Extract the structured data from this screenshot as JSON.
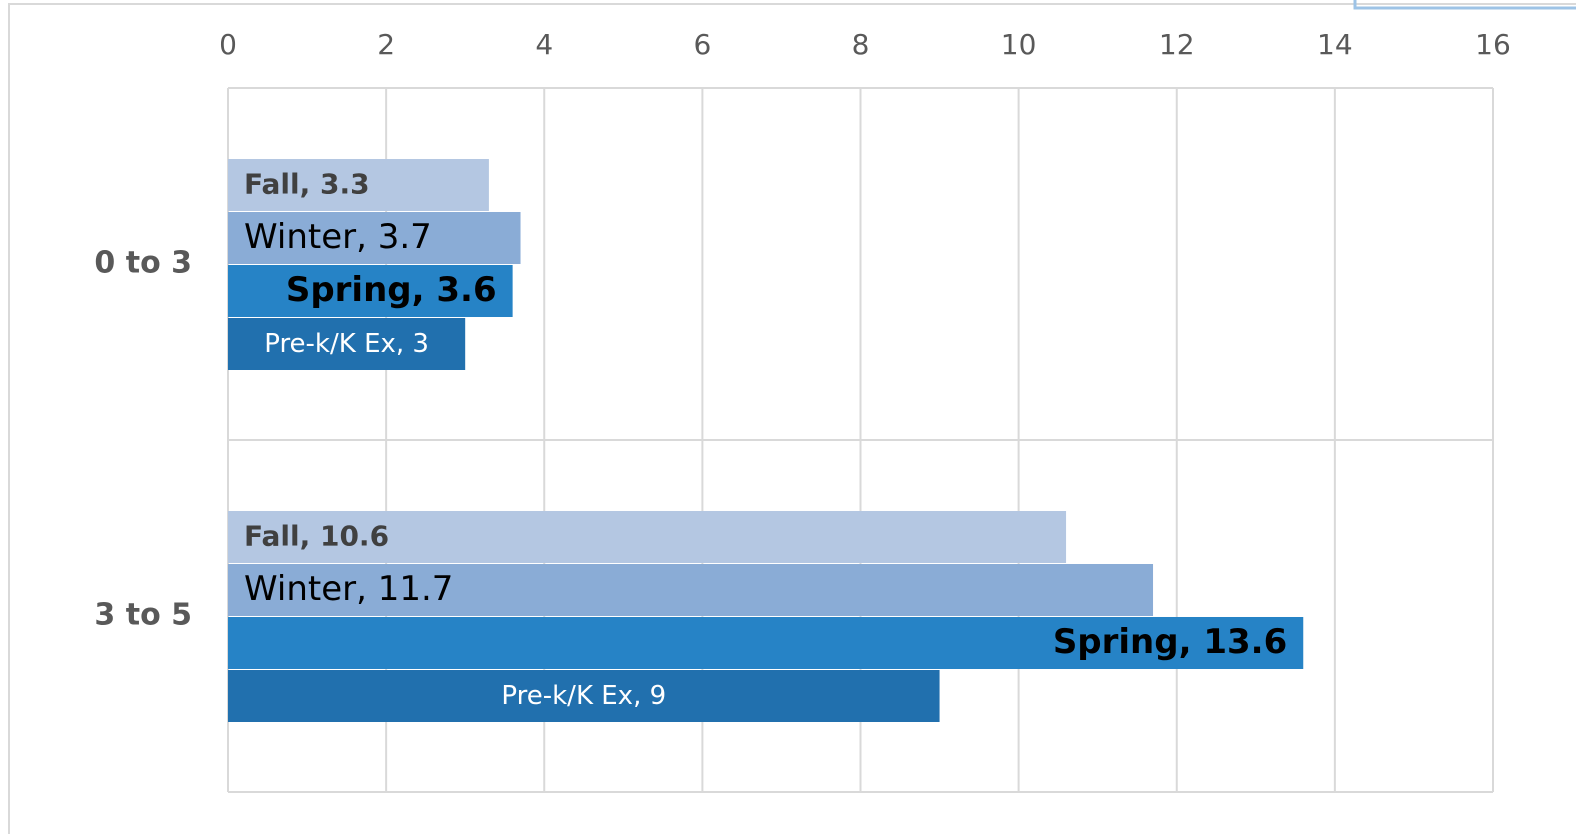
{
  "chart_data": {
    "type": "hbar",
    "categories": [
      "0 to 3",
      "3 to 5"
    ],
    "series": [
      {
        "name": "Fall",
        "color": "#b4c7e2",
        "values": [
          3.3,
          10.6
        ],
        "value_labels": [
          "Fall, 3.3",
          "Fall, 10.6"
        ]
      },
      {
        "name": "Winter",
        "color": "#8aacd6",
        "values": [
          3.7,
          11.7
        ],
        "value_labels": [
          "Winter, 3.7",
          "Winter, 11.7"
        ]
      },
      {
        "name": "Spring",
        "color": "#2683c6",
        "values": [
          3.6,
          13.6
        ],
        "value_labels": [
          "Spring, 3.6",
          "Spring, 13.6"
        ]
      },
      {
        "name": "Pre-k/K Ex",
        "color": "#2170ae",
        "values": [
          3,
          9
        ],
        "value_labels": [
          "Pre-k/K Ex, 3",
          "Pre-k/K Ex, 9"
        ]
      }
    ],
    "xlim": [
      0,
      16
    ],
    "xticks": [
      0,
      2,
      4,
      6,
      8,
      10,
      12,
      14,
      16
    ],
    "grid": true
  }
}
